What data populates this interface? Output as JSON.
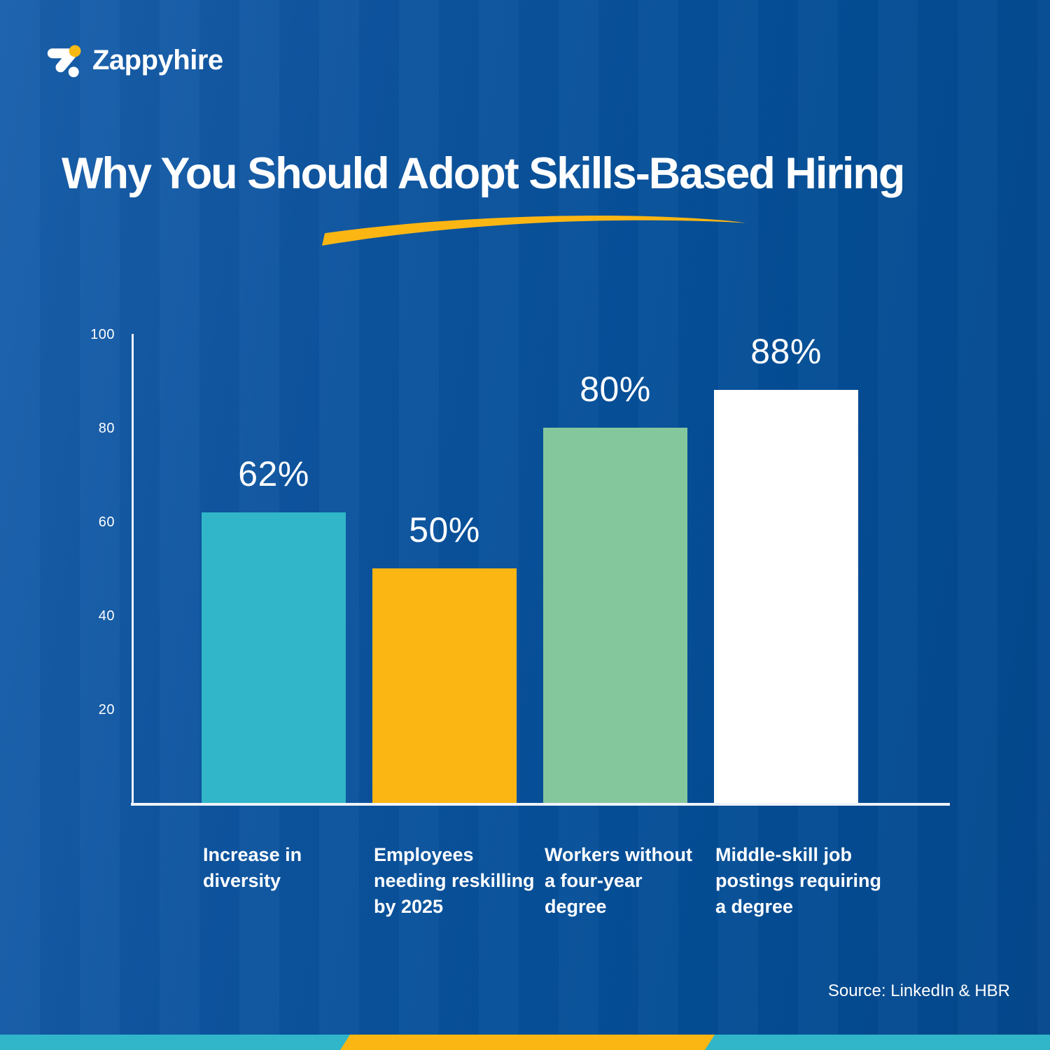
{
  "brand": {
    "name": "Zappyhire"
  },
  "header": {
    "title": "Why You Should Adopt Skills-Based Hiring"
  },
  "footer": {
    "source": "Source: LinkedIn & HBR"
  },
  "chart_data": {
    "type": "bar",
    "title": "Why You Should Adopt Skills-Based Hiring",
    "categories": [
      "Increase in diversity",
      "Employees needing reskilling by 2025",
      "Workers without a four-year degree",
      "Middle-skill job postings requiring a degree"
    ],
    "categories_lines": [
      [
        "Increase in",
        "diversity"
      ],
      [
        "Employees",
        "needing reskilling",
        "by 2025"
      ],
      [
        "Workers without",
        "a four-year",
        "degree"
      ],
      [
        "Middle-skill job",
        "postings requiring",
        "a degree"
      ]
    ],
    "values": [
      62,
      50,
      80,
      88
    ],
    "value_labels": [
      "62%",
      "50%",
      "80%",
      "88%"
    ],
    "bar_colors": [
      "#30B6C8",
      "#FCB613",
      "#85C79C",
      "#FFFFFF"
    ],
    "y_ticks": [
      20,
      40,
      60,
      80,
      100
    ],
    "y_tick_labels": [
      "20",
      "40",
      "60",
      "80",
      "100"
    ],
    "ylim": [
      0,
      100
    ],
    "grid": false,
    "legend": false,
    "source": "Source: LinkedIn & HBR"
  },
  "colors": {
    "background_light": "#1A60AC",
    "background_dark": "#05488D",
    "accent_teal": "#30B6C8",
    "accent_yellow": "#FCB613",
    "accent_green": "#85C79C",
    "bar_white": "#FFFFFF",
    "text": "#FFFFFF"
  }
}
